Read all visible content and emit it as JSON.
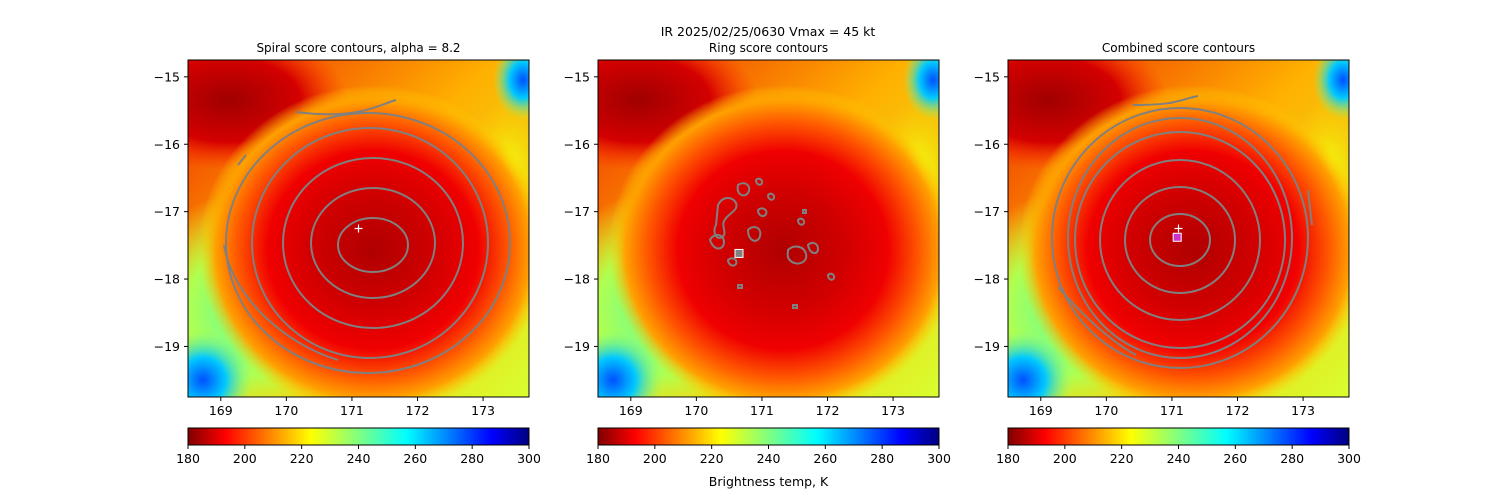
{
  "suptitle": "IR  2025/02/25/0630    Vmax = 45 kt",
  "colormap": {
    "name": "jet",
    "min": 180,
    "max": 300,
    "ticks": [
      180,
      200,
      220,
      240,
      260,
      280,
      300
    ],
    "label": "Brightness temp, K"
  },
  "chart_data": [
    {
      "type": "heatmap",
      "title": "Spiral score contours, alpha =  8.2",
      "xlabel": "",
      "ylabel": "",
      "xlim": [
        168.5,
        173.7
      ],
      "ylim": [
        -19.75,
        -14.75
      ],
      "xticks": [
        169,
        170,
        171,
        172,
        173
      ],
      "yticks": [
        -15,
        -16,
        -17,
        -18,
        -19
      ],
      "field": "brightness temperature (K)",
      "contours": "spiral score, concentric about center",
      "markers": [
        {
          "symbol": "plus",
          "color": "#ffffff",
          "x": 171.1,
          "y": -17.25
        }
      ]
    },
    {
      "type": "heatmap",
      "title": "Ring score contours",
      "xlabel": "",
      "ylabel": "",
      "xlim": [
        168.5,
        173.7
      ],
      "ylim": [
        -19.75,
        -14.75
      ],
      "xticks": [
        169,
        170,
        171,
        172,
        173
      ],
      "yticks": [
        -15,
        -16,
        -17,
        -18,
        -19
      ],
      "field": "brightness temperature (K)",
      "contours": "ring score, small scattered patches",
      "markers": [
        {
          "symbol": "square",
          "color": "#ffffff",
          "x": 170.65,
          "y": -17.62
        }
      ]
    },
    {
      "type": "heatmap",
      "title": "Combined score contours",
      "xlabel": "",
      "ylabel": "",
      "xlim": [
        168.5,
        173.7
      ],
      "ylim": [
        -19.75,
        -14.75
      ],
      "xticks": [
        169,
        170,
        171,
        172,
        173
      ],
      "yticks": [
        -15,
        -16,
        -17,
        -18,
        -19
      ],
      "field": "brightness temperature (K)",
      "contours": "combined score, concentric about center",
      "markers": [
        {
          "symbol": "plus",
          "color": "#ffffff",
          "x": 171.1,
          "y": -17.25
        },
        {
          "symbol": "square",
          "color": "#cc33cc",
          "x": 171.08,
          "y": -17.38
        }
      ]
    }
  ]
}
